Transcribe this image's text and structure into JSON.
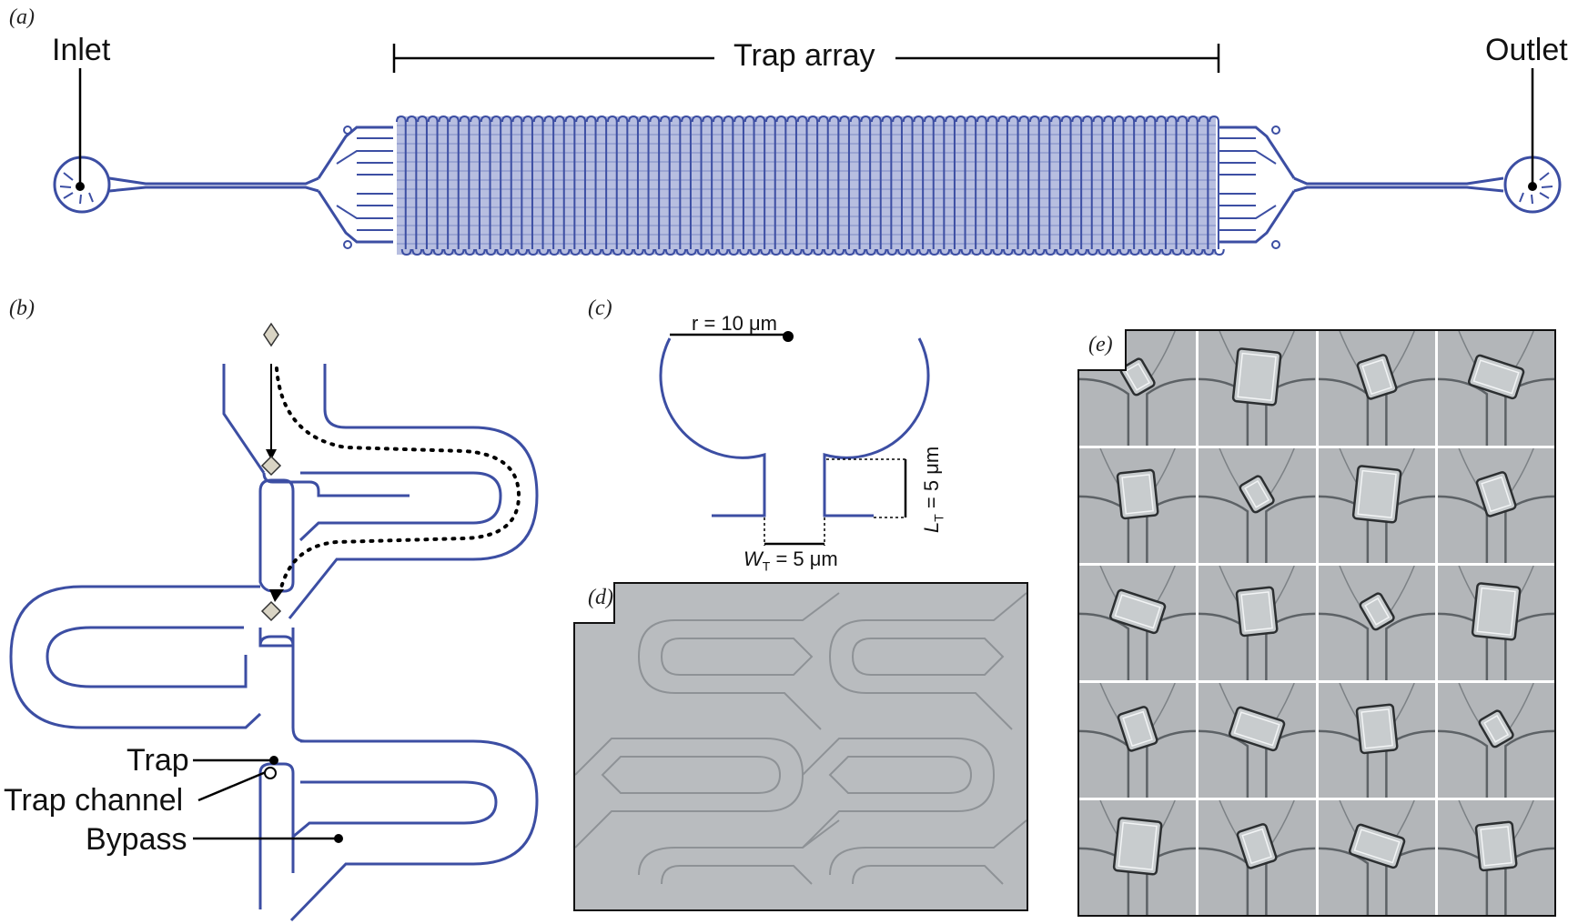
{
  "panels": {
    "a": "(a)",
    "b": "(b)",
    "c": "(c)",
    "d": "(d)",
    "e": "(e)"
  },
  "panel_a": {
    "inlet": "Inlet",
    "outlet": "Outlet",
    "trap_array": "Trap array"
  },
  "panel_b": {
    "trap": "Trap",
    "trap_channel": "Trap channel",
    "bypass": "Bypass"
  },
  "panel_c": {
    "radius": "r = 10 μm",
    "length_symbol": "L",
    "length_sub": "T",
    "length_value": " = 5 μm",
    "width_symbol": "W",
    "width_sub": "T",
    "width_value": " = 5 μm"
  },
  "colors": {
    "channel": "#3c4ea3",
    "image_gray": "#b5b8bb"
  },
  "panel_e": {
    "rows": 5,
    "cols": 4
  }
}
